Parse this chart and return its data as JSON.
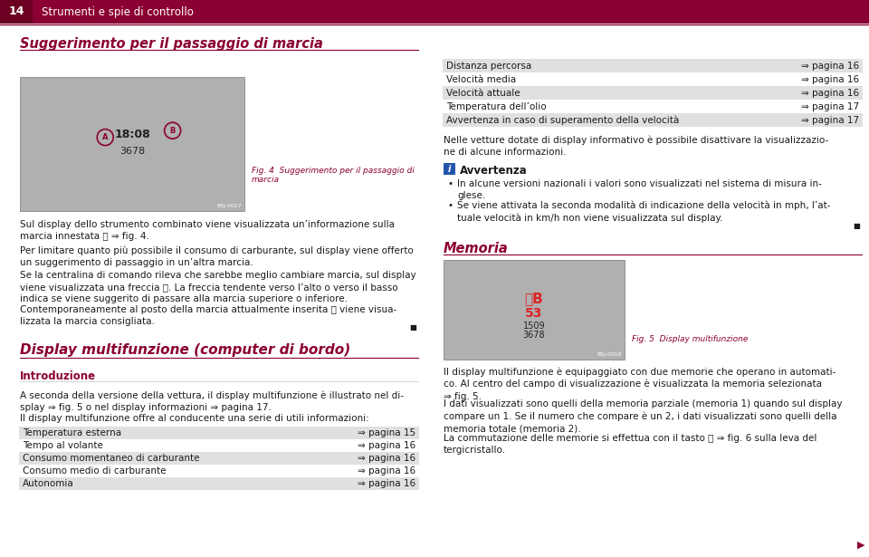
{
  "bg_color": "#ffffff",
  "header_bg": "#8B0032",
  "header_text_color": "#ffffff",
  "header_number": "14",
  "header_title": "Strumenti e spie di controllo",
  "section1_title": "Suggerimento per il passaggio di marcia",
  "section1_title_color": "#8B0032",
  "fig4_caption": "Fig. 4  Suggerimento per il passaggio di\nmarcia",
  "fig4_caption_color": "#8B0032",
  "text_col1_0": "Sul display dello strumento combinato viene visualizzata un’informazione sulla\nmarcia innestata Ⓐ ⇒ fig. 4.",
  "text_col1_1": "Per limitare quanto più possibile il consumo di carburante, sul display viene offerto\nun suggerimento di passaggio in un’altra marcia.",
  "text_col1_2": "Se la centralina di comando rileva che sarebbe meglio cambiare marcia, sul display\nviene visualizzata una freccia Ⓑ. La freccia tendente verso l’alto o verso il basso\nindica se viene suggerito di passare alla marcia superiore o inferiore.",
  "text_col1_3": "Contemporaneamente al posto della marcia attualmente inserita Ⓐ viene visua-\nlizzata la marcia consigliata.",
  "section2_title": "Display multifunzione (computer di bordo)",
  "section2_title_color": "#8B0032",
  "subsection_intro": "Introduzione",
  "subsection_intro_color": "#8B0032",
  "intro_text1": "A seconda della versione della vettura, il display multifunzione è illustrato nel di-\nsplay ⇒ fig. 5 o nel display informazioni ⇒ pagina 17.",
  "intro_text2": "Il display multifunzione offre al conducente una serie di utili informazioni:",
  "table_rows": [
    [
      "Temperatura esterna",
      "⇒ pagina 15"
    ],
    [
      "Tempo al volante",
      "⇒ pagina 16"
    ],
    [
      "Consumo momentaneo di carburante",
      "⇒ pagina 16"
    ],
    [
      "Consumo medio di carburante",
      "⇒ pagina 16"
    ],
    [
      "Autonomia",
      "⇒ pagina 16"
    ]
  ],
  "table_alt_color": "#e0e0e0",
  "table_text_color": "#1a1a1a",
  "right_table_rows": [
    [
      "Distanza percorsa",
      "⇒ pagina 16"
    ],
    [
      "Velocità media",
      "⇒ pagina 16"
    ],
    [
      "Velocità attuale",
      "⇒ pagina 16"
    ],
    [
      "Temperatura dell’olio",
      "⇒ pagina 17"
    ],
    [
      "Avvertenza in caso di superamento della velocità",
      "⇒ pagina 17"
    ]
  ],
  "right_text1": "Nelle vetture dotate di display informativo è possibile disattivare la visualizzazio-\nne di alcune informazioni.",
  "avvertenza_title": "Avvertenza",
  "avvertenza_bullet1": "In alcune versioni nazionali i valori sono visualizzati nel sistema di misura in-\nglese.",
  "avvertenza_bullet2": "Se viene attivata la seconda modalità di indicazione della velocità in mph, l’at-\ntuale velocità in km/h non viene visualizzata sul display.",
  "section_memoria": "Memoria",
  "section_memoria_color": "#8B0032",
  "fig5_caption": "Fig. 5  Display multifunzione",
  "fig5_caption_color": "#8B0032",
  "memoria_text1": "Il display multifunzione è equipaggiato con due memorie che operano in automati-\nco. Al centro del campo di visualizzazione è visualizzata la memoria selezionata\n⇒ fig. 5.",
  "memoria_text2": "I dati visualizzati sono quelli della memoria parziale (memoria 1) quando sul display\ncompare un 1. Se il numero che compare è un 2, i dati visualizzati sono quelli della\nmemoria totale (memoria 2).",
  "memoria_text3": "La commutazione delle memorie si effettua con il tasto Ⓑ ⇒ fig. 6 sulla leva del\ntergicristallo.",
  "crimson": "#8B0032",
  "body_fs": 7.5,
  "small_fs": 6.5
}
